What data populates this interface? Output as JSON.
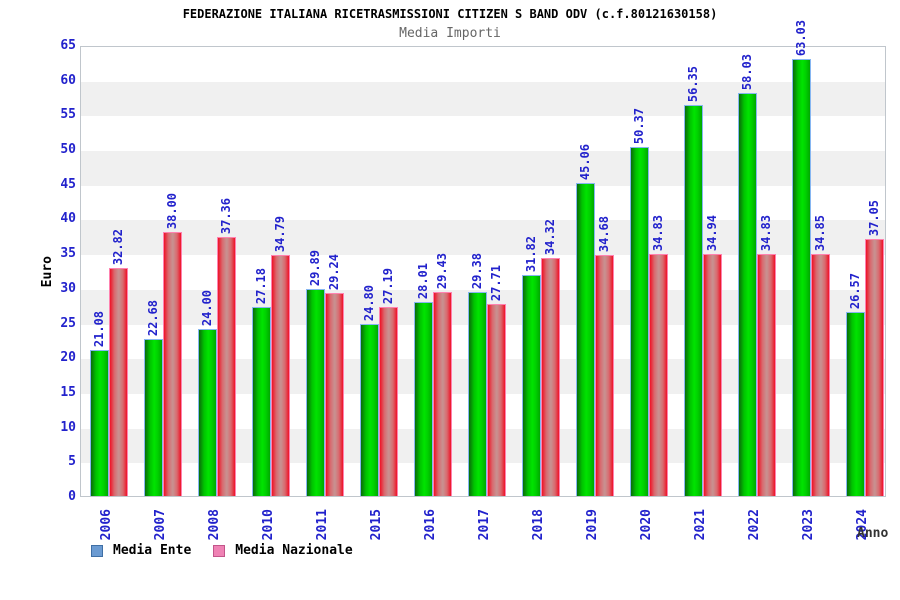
{
  "header": {
    "title": "FEDERAZIONE ITALIANA RICETRASMISSIONI CITIZEN S BAND ODV (c.f.80121630158)",
    "subtitle": "Media Importi"
  },
  "axes": {
    "y_title": "Euro",
    "x_title": "Anno",
    "y_ticks": [
      0,
      5,
      10,
      15,
      20,
      25,
      30,
      35,
      40,
      45,
      50,
      55,
      60,
      65
    ]
  },
  "legend": {
    "items": [
      {
        "label": "Media Ente",
        "swatch": "#6b9bd2",
        "swatch_border": "#3f6fa5"
      },
      {
        "label": "Media Nazionale",
        "swatch": "#ef82b4",
        "swatch_border": "#c2558a"
      }
    ]
  },
  "chart_data": {
    "type": "bar",
    "title": "Media Importi",
    "categories": [
      "2006",
      "2007",
      "2008",
      "2010",
      "2011",
      "2015",
      "2016",
      "2017",
      "2018",
      "2019",
      "2020",
      "2021",
      "2022",
      "2023",
      "2024"
    ],
    "series": [
      {
        "name": "Media Ente",
        "values": [
          21.08,
          22.68,
          24.0,
          27.18,
          29.89,
          24.8,
          28.01,
          29.38,
          31.82,
          45.06,
          50.37,
          56.35,
          58.03,
          63.03,
          26.57
        ]
      },
      {
        "name": "Media Nazionale",
        "values": [
          32.82,
          38.0,
          37.36,
          34.79,
          29.24,
          27.19,
          29.43,
          27.71,
          34.32,
          34.68,
          34.83,
          34.94,
          34.83,
          34.85,
          37.05
        ]
      }
    ],
    "xlabel": "Anno",
    "ylabel": "Euro",
    "ylim": [
      0,
      65
    ],
    "y_step": 5,
    "grid": "alternating-horizontal-bands",
    "legend_position": "bottom-left",
    "value_labels": "rotated-90-above-bars",
    "decimals": 2
  },
  "colors": {
    "label_blue": "#2222cc",
    "band_gray": "#f0f0f0",
    "plot_border": "#c0c6cc",
    "title_color": "#000000",
    "subtitle_color": "#666666",
    "anno_color": "#333333",
    "green_edge": "#0b6b0b",
    "green_bright": "#00e400",
    "green_right": "#00a800",
    "green_border": "#86b6f2",
    "red_edge": "#ee1226",
    "red_center": "#c98f8f",
    "red_border": "#ff82b0"
  }
}
